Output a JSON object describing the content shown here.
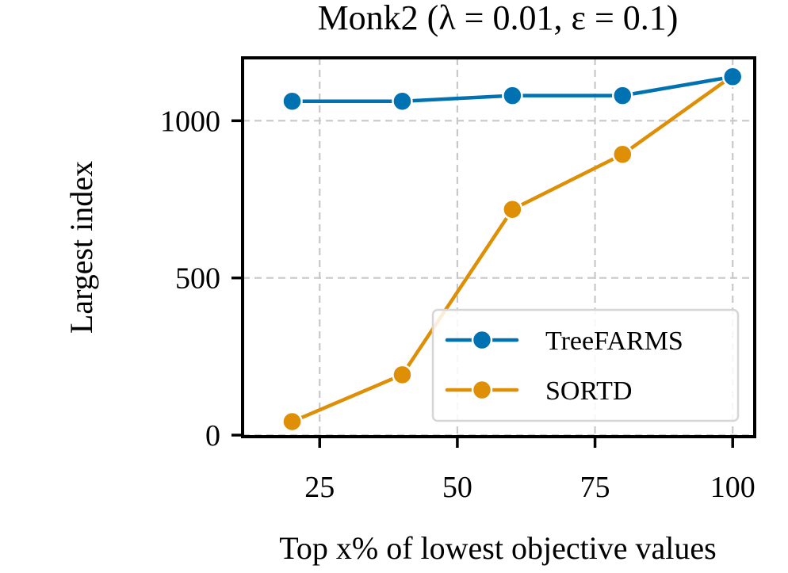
{
  "chart_data": {
    "type": "line",
    "title": "Monk2 (λ = 0.01, ε = 0.1)",
    "xlabel": "Top x% of lowest objective values",
    "ylabel": "Largest index",
    "x": [
      20,
      40,
      60,
      80,
      100
    ],
    "xlim": [
      11,
      104
    ],
    "ylim": [
      -5,
      1200
    ],
    "xticks": [
      25,
      50,
      75,
      100
    ],
    "yticks": [
      0,
      500,
      1000
    ],
    "grid": true,
    "legend_position": "lower-right",
    "series": [
      {
        "name": "TreeFARMS",
        "color": "#0072b2",
        "values": [
          1062,
          1062,
          1080,
          1080,
          1140
        ]
      },
      {
        "name": "SORTD",
        "color": "#de8f05",
        "values": [
          43,
          192,
          718,
          893,
          1143
        ]
      }
    ]
  }
}
